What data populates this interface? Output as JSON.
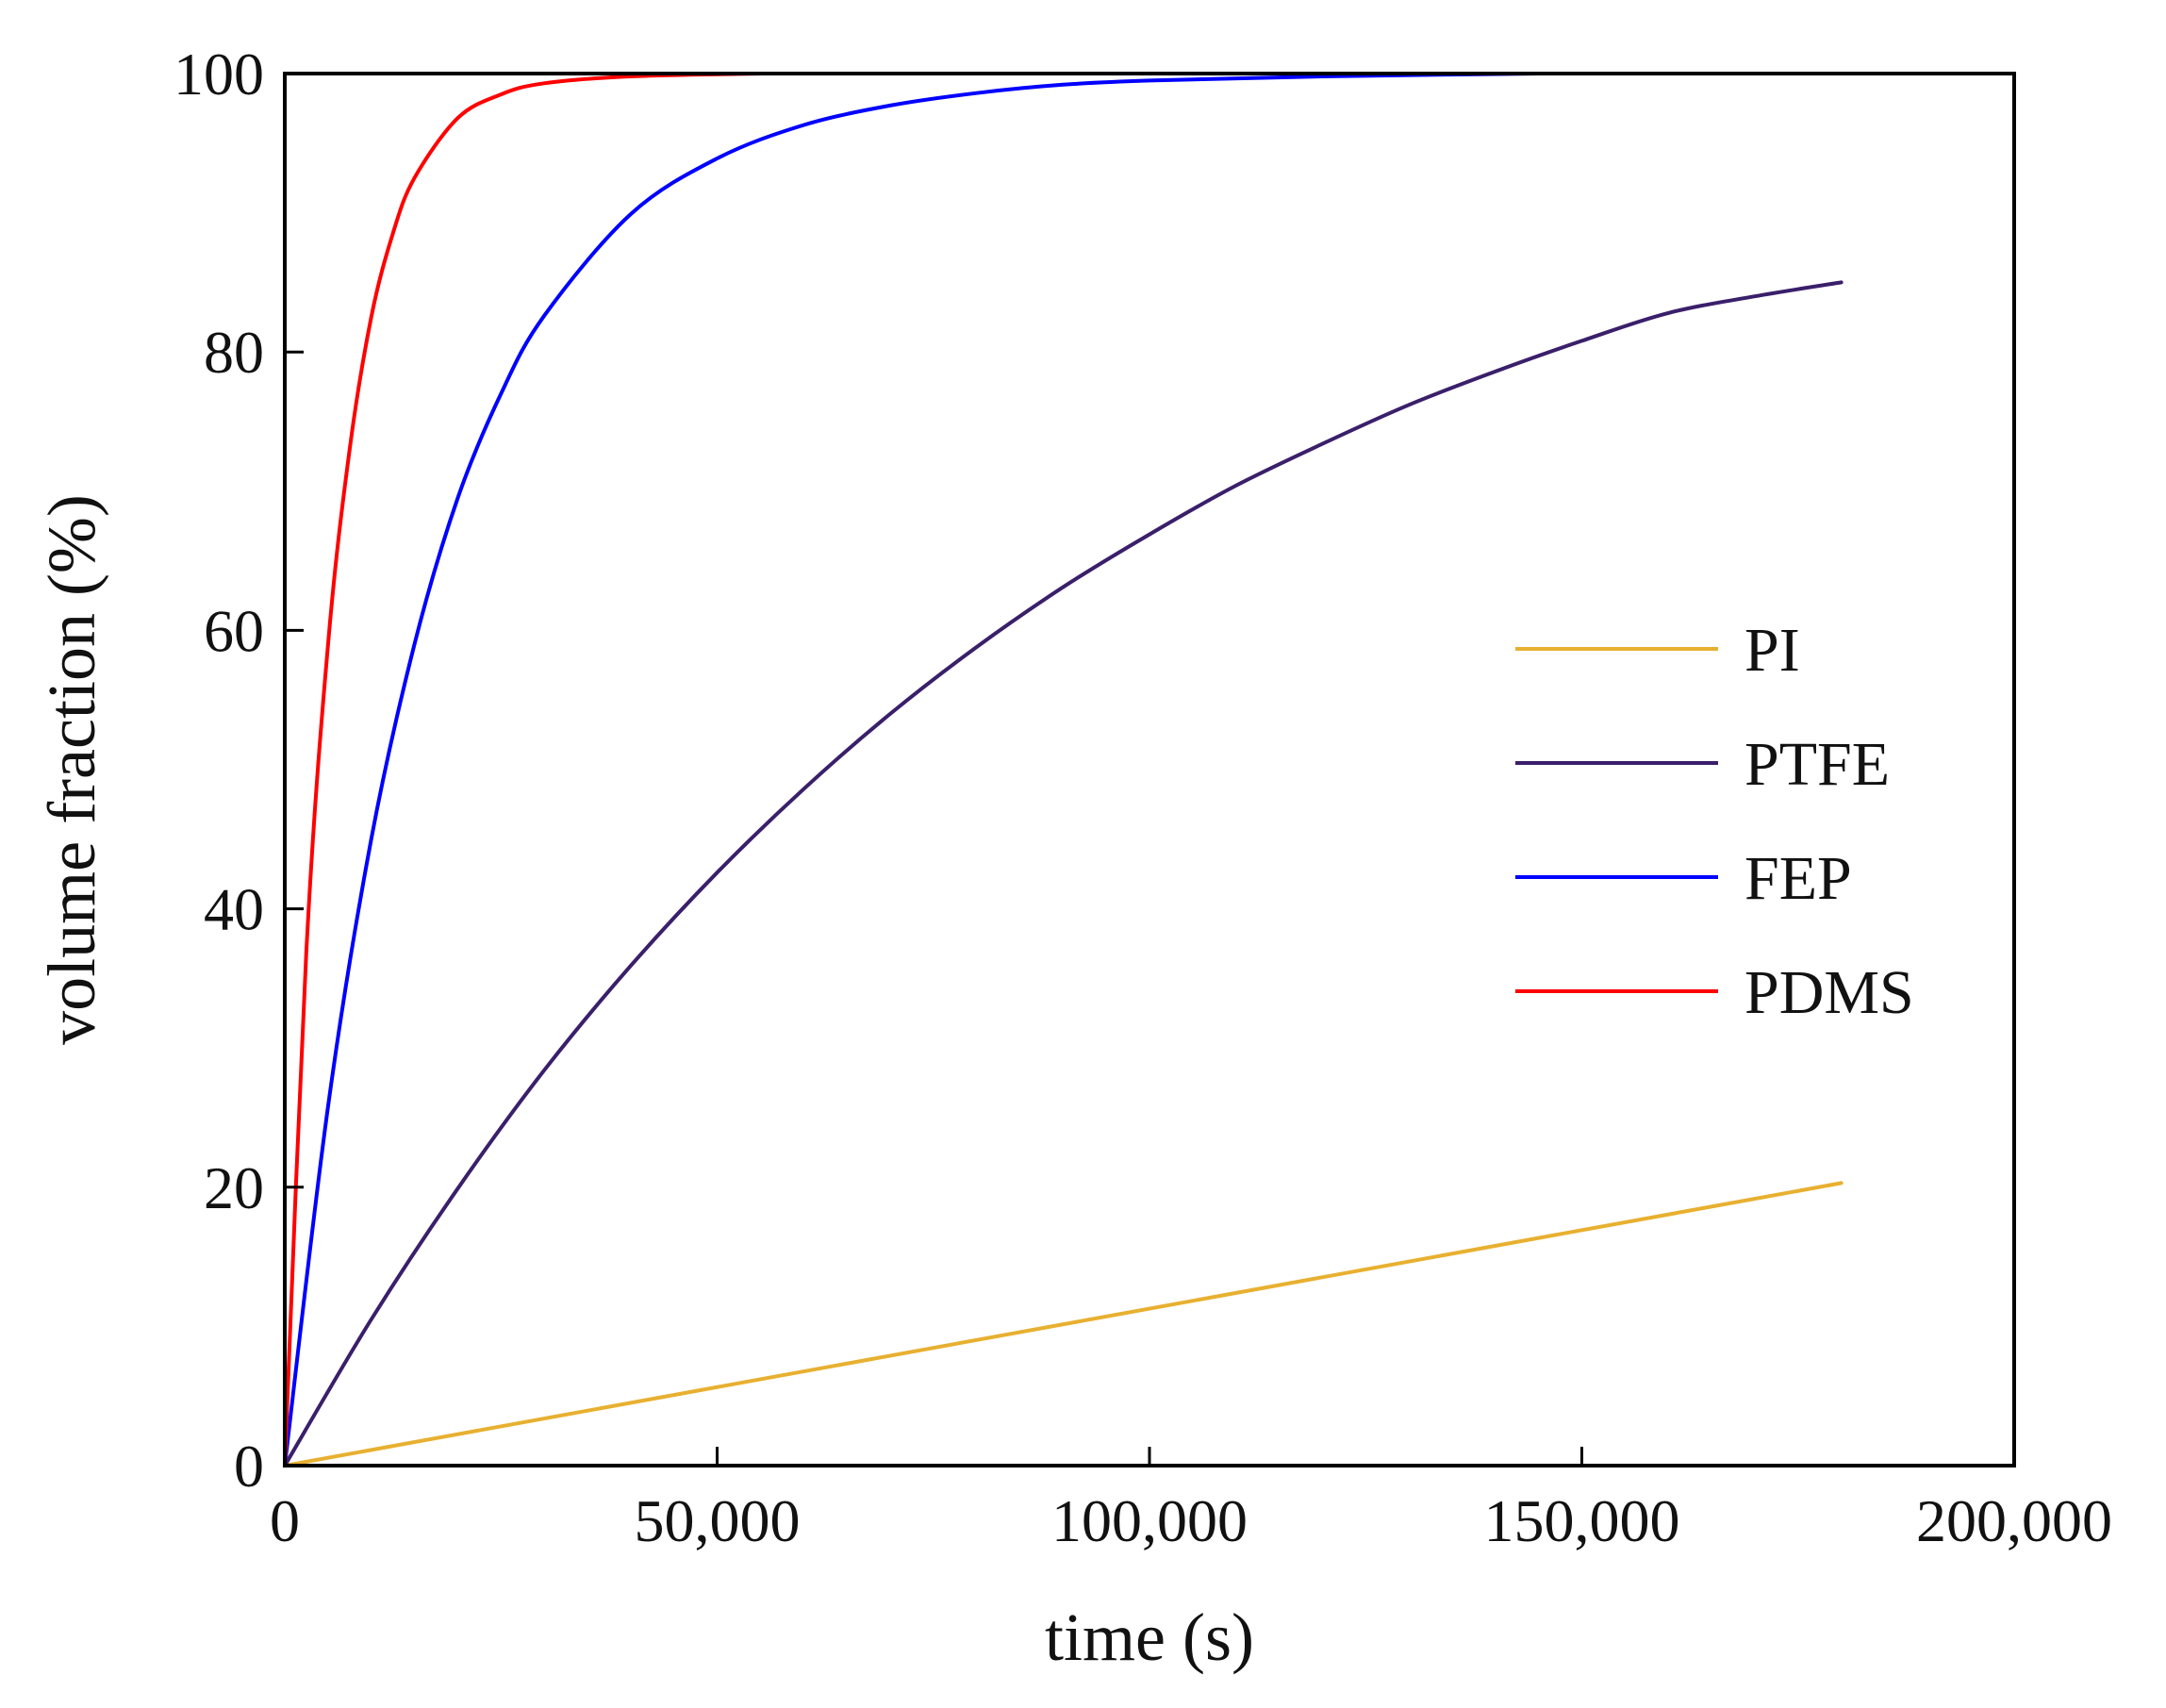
{
  "chart_data": {
    "type": "line",
    "title": "",
    "xlabel": "time (s)",
    "ylabel": "volume fraction (%)",
    "xlim": [
      0,
      200000
    ],
    "ylim": [
      0,
      100
    ],
    "xticks": [
      0,
      50000,
      100000,
      150000,
      200000
    ],
    "xtick_labels": [
      "0",
      "50,000",
      "100,000",
      "150,000",
      "200,000"
    ],
    "yticks": [
      0,
      20,
      40,
      60,
      80,
      100
    ],
    "ytick_labels": [
      "0",
      "20",
      "40",
      "60",
      "80",
      "100"
    ],
    "grid": false,
    "legend_position": "right",
    "series": [
      {
        "name": "PI",
        "color": "#E8B030",
        "x": [
          0,
          180000
        ],
        "y": [
          0,
          20.3
        ]
      },
      {
        "name": "PTFE",
        "color": "#3A1F6B",
        "x": [
          0,
          10000,
          20000,
          30000,
          40000,
          50000,
          60000,
          70000,
          80000,
          90000,
          100000,
          110000,
          120000,
          130000,
          140000,
          150000,
          160000,
          170000,
          180000
        ],
        "y": [
          0,
          10.5,
          19.9,
          28.4,
          35.9,
          42.6,
          48.6,
          54.0,
          58.8,
          63.1,
          66.9,
          70.4,
          73.4,
          76.2,
          78.6,
          80.8,
          82.8,
          84.0,
          85.0
        ]
      },
      {
        "name": "FEP",
        "color": "#0000FF",
        "x": [
          0,
          5000,
          10000,
          15000,
          20000,
          25000,
          30000,
          40000,
          50000,
          60000,
          70000,
          80000,
          90000,
          100000,
          120000,
          145000
        ],
        "y": [
          0,
          25.8,
          45.0,
          59.0,
          69.5,
          77.0,
          82.6,
          89.9,
          93.9,
          96.3,
          97.7,
          98.6,
          99.2,
          99.5,
          99.8,
          100
        ]
      },
      {
        "name": "PDMS",
        "color": "#FF0000",
        "x": [
          0,
          2500,
          5000,
          7500,
          10000,
          12500,
          15000,
          20000,
          25000,
          30000,
          40000,
          55000
        ],
        "y": [
          0,
          37.0,
          59.0,
          73.0,
          82.5,
          88.5,
          92.5,
          96.8,
          98.5,
          99.3,
          99.8,
          100
        ]
      }
    ]
  }
}
